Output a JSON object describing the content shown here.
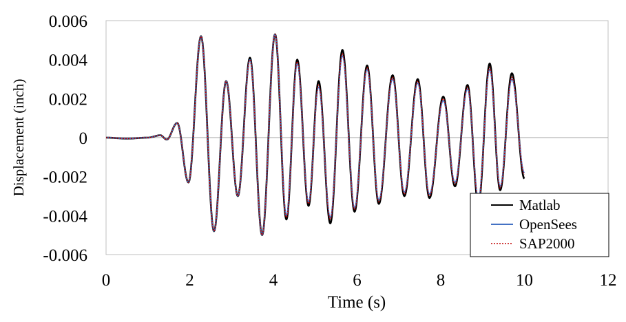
{
  "chart_data": {
    "type": "line",
    "title": "",
    "xlabel": "Time (s)",
    "ylabel": "Displacement (inch)",
    "xlim": [
      0,
      12
    ],
    "ylim": [
      -0.006,
      0.006
    ],
    "x_ticks": [
      "0",
      "2",
      "4",
      "6",
      "8",
      "10",
      "12"
    ],
    "y_ticks": [
      "-0.006",
      "-0.004",
      "-0.002",
      "0",
      "0.002",
      "0.004",
      "0.006"
    ],
    "grid": false,
    "legend_position": "bottom-right",
    "series": [
      {
        "name": "Matlab",
        "color": "#000000",
        "style": "solid",
        "x": [
          0,
          0.5,
          1.0,
          1.3,
          1.45,
          1.7,
          1.97,
          2.27,
          2.58,
          2.87,
          3.15,
          3.44,
          3.73,
          4.04,
          4.31,
          4.57,
          4.84,
          5.08,
          5.36,
          5.65,
          5.94,
          6.24,
          6.52,
          6.85,
          7.13,
          7.45,
          7.73,
          8.06,
          8.34,
          8.64,
          8.9,
          9.17,
          9.42,
          9.7,
          10.0
        ],
        "y": [
          0,
          -5e-05,
          0,
          0.00012,
          -0.0001,
          0.00075,
          -0.0023,
          0.0052,
          -0.0048,
          0.0029,
          -0.003,
          0.0041,
          -0.005,
          0.0053,
          -0.0042,
          0.004,
          -0.0035,
          0.0029,
          -0.0044,
          0.0045,
          -0.0038,
          0.0037,
          -0.0034,
          0.0032,
          -0.003,
          0.003,
          -0.0031,
          0.0021,
          -0.0025,
          0.0027,
          -0.0034,
          0.0038,
          -0.0027,
          0.0033,
          -0.0021
        ]
      },
      {
        "name": "OpenSees",
        "color": "#4472C4",
        "style": "solid",
        "x": [
          0,
          0.5,
          1.0,
          1.3,
          1.45,
          1.7,
          1.97,
          2.27,
          2.58,
          2.87,
          3.15,
          3.44,
          3.73,
          4.04,
          4.31,
          4.57,
          4.84,
          5.08,
          5.36,
          5.65,
          5.94,
          6.24,
          6.52,
          6.85,
          7.13,
          7.45,
          7.73,
          8.06,
          8.34,
          8.64,
          8.9,
          9.17,
          9.42,
          9.7,
          10.0
        ],
        "y": [
          0,
          -5e-05,
          0,
          0.00012,
          -0.0001,
          0.00075,
          -0.0023,
          0.0052,
          -0.0048,
          0.0029,
          -0.003,
          0.004,
          -0.005,
          0.0053,
          -0.004,
          0.0038,
          -0.0033,
          0.0026,
          -0.0041,
          0.0042,
          -0.0036,
          0.0035,
          -0.0032,
          0.003,
          -0.0028,
          0.0028,
          -0.0029,
          0.0019,
          -0.0023,
          0.0025,
          -0.0031,
          0.0035,
          -0.0025,
          0.003,
          -0.0018
        ]
      },
      {
        "name": "SAP2000",
        "color": "#C00000",
        "style": "dotted",
        "x": [
          0,
          0.5,
          1.0,
          1.3,
          1.45,
          1.7,
          1.97,
          2.27,
          2.58,
          2.87,
          3.15,
          3.44,
          3.73,
          4.04,
          4.31,
          4.57,
          4.84,
          5.08,
          5.36,
          5.65,
          5.94,
          6.24,
          6.52,
          6.85,
          7.13,
          7.45,
          7.73,
          8.06,
          8.34,
          8.64,
          8.9,
          9.17,
          9.42,
          9.7,
          10.0
        ],
        "y": [
          0,
          -5e-05,
          0,
          0.00012,
          -0.0001,
          0.00075,
          -0.0023,
          0.0052,
          -0.0048,
          0.0029,
          -0.003,
          0.004,
          -0.005,
          0.0053,
          -0.0041,
          0.0039,
          -0.0034,
          0.0027,
          -0.0042,
          0.0043,
          -0.0037,
          0.0036,
          -0.0033,
          0.0031,
          -0.0029,
          0.0029,
          -0.003,
          0.002,
          -0.0024,
          0.0026,
          -0.0032,
          0.0036,
          -0.0026,
          0.0031,
          -0.0019
        ]
      }
    ]
  }
}
